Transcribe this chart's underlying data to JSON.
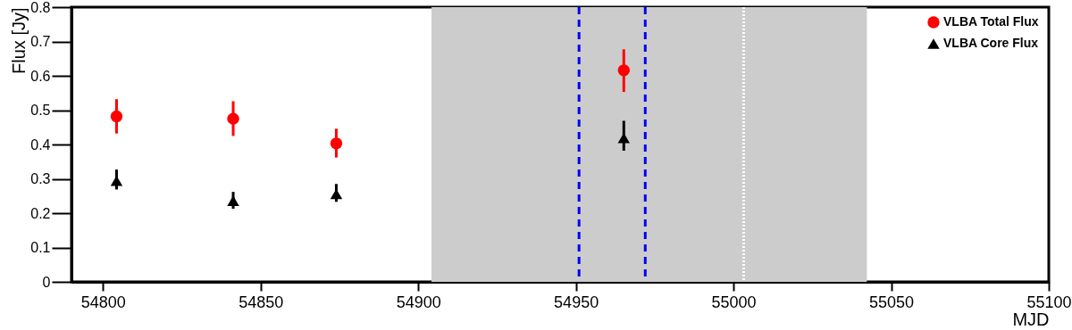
{
  "chart_data": {
    "type": "scatter",
    "xlabel": "MJD",
    "ylabel": "Flux [Jy]",
    "xlim": [
      54790,
      55100
    ],
    "xticks": [
      54800,
      54850,
      54900,
      54950,
      55000,
      55050,
      55100
    ],
    "ylim": [
      0,
      0.8
    ],
    "yticks": [
      0,
      0.1,
      0.2,
      0.3,
      0.4,
      0.5,
      0.6,
      0.7,
      0.8
    ],
    "grid": false,
    "legend": "top right",
    "series": [
      {
        "name": "VLBA Total Flux",
        "color": "#ff0000",
        "marker": "circle",
        "x": [
          54804.3,
          54841.3,
          54874,
          54965.2
        ],
        "values": [
          0.482,
          0.475,
          0.403,
          0.616
        ],
        "errors": [
          [
            0.432,
            0.532
          ],
          [
            0.425,
            0.526
          ],
          [
            0.362,
            0.446
          ],
          [
            0.553,
            0.677
          ]
        ]
      },
      {
        "name": "VLBA Core Flux",
        "color": "#000000",
        "marker": "triangle",
        "x": [
          54804.3,
          54841.3,
          54874,
          54965.2
        ],
        "values": [
          0.294,
          0.236,
          0.256,
          0.419
        ],
        "errors": [
          [
            0.269,
            0.327
          ],
          [
            0.213,
            0.262
          ],
          [
            0.233,
            0.285
          ],
          [
            0.382,
            0.469
          ]
        ]
      }
    ],
    "bands": [
      {
        "axis": "x",
        "from": 54904.2,
        "to": 55042.3,
        "color": "#cccccc"
      }
    ],
    "ref_lines": [
      {
        "axis": "x",
        "value": 54951,
        "color": "#0000ff",
        "line_style": "dashed"
      },
      {
        "axis": "x",
        "value": 54972,
        "color": "#0000ff",
        "line_style": "dashed"
      },
      {
        "axis": "x",
        "value": 55003.2,
        "color": "#ffffff",
        "line_style": "dotted"
      }
    ]
  }
}
